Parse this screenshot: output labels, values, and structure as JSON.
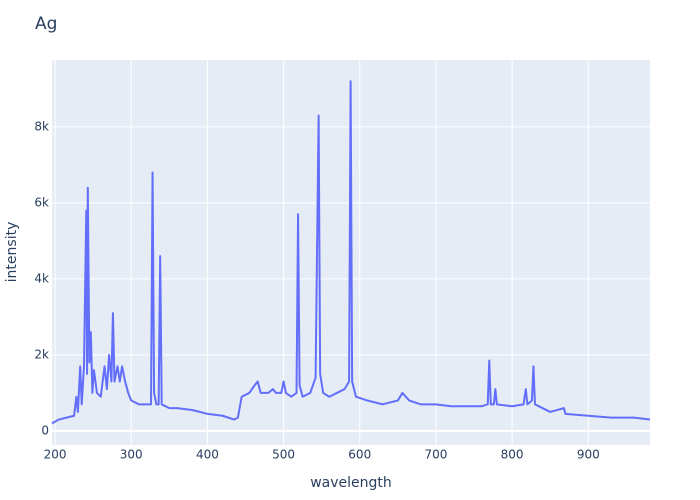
{
  "chart_data": {
    "type": "line",
    "title": "Ag",
    "x_label": "wavelength",
    "y_label": "intensity",
    "color": "#636efa",
    "grid": true,
    "x": [
      196,
      205,
      215,
      225,
      228,
      230,
      233,
      235,
      238,
      241,
      242,
      243,
      245,
      247,
      249,
      251,
      255,
      260,
      265,
      268,
      271,
      274,
      276,
      278,
      282,
      285,
      288,
      292,
      296,
      300,
      310,
      320,
      326,
      328,
      330,
      333,
      336,
      338,
      340,
      350,
      360,
      380,
      400,
      420,
      435,
      440,
      445,
      455,
      462,
      466,
      470,
      480,
      486,
      490,
      497,
      500,
      503,
      510,
      517,
      519,
      521,
      525,
      535,
      542,
      546,
      548,
      552,
      560,
      570,
      580,
      586,
      588,
      590,
      595,
      610,
      630,
      650,
      656,
      665,
      680,
      700,
      720,
      740,
      760,
      768,
      770,
      772,
      776,
      778,
      780,
      800,
      815,
      818,
      820,
      826,
      828,
      830,
      850,
      868,
      870,
      900,
      930,
      960,
      981
    ],
    "values": [
      200,
      300,
      350,
      400,
      900,
      500,
      1700,
      700,
      1700,
      5800,
      1500,
      6400,
      1800,
      2600,
      1000,
      1600,
      1000,
      900,
      1700,
      1100,
      2000,
      1300,
      3100,
      1300,
      1700,
      1300,
      1700,
      1300,
      1000,
      800,
      700,
      700,
      700,
      6800,
      1000,
      700,
      700,
      4600,
      700,
      600,
      600,
      550,
      450,
      400,
      300,
      350,
      900,
      1000,
      1200,
      1300,
      1000,
      1000,
      1100,
      1000,
      1000,
      1300,
      1000,
      900,
      1000,
      5700,
      1200,
      900,
      1000,
      1400,
      8300,
      1500,
      1000,
      900,
      1000,
      1100,
      1300,
      9200,
      1300,
      900,
      800,
      700,
      800,
      1000,
      800,
      700,
      700,
      650,
      650,
      650,
      700,
      1850,
      700,
      700,
      1100,
      700,
      650,
      700,
      1100,
      700,
      800,
      1700,
      700,
      500,
      600,
      450,
      400,
      350,
      350,
      300
    ],
    "xlim": [
      196,
      981
    ],
    "ylim": [
      -370,
      9760
    ],
    "xticks": [
      200,
      300,
      400,
      500,
      600,
      700,
      800,
      900
    ],
    "yticks": [
      0,
      {
        "value": 2000,
        "label": "2k"
      },
      {
        "value": 4000,
        "label": "4k"
      },
      {
        "value": 6000,
        "label": "6k"
      },
      {
        "value": 8000,
        "label": "8k"
      }
    ]
  }
}
